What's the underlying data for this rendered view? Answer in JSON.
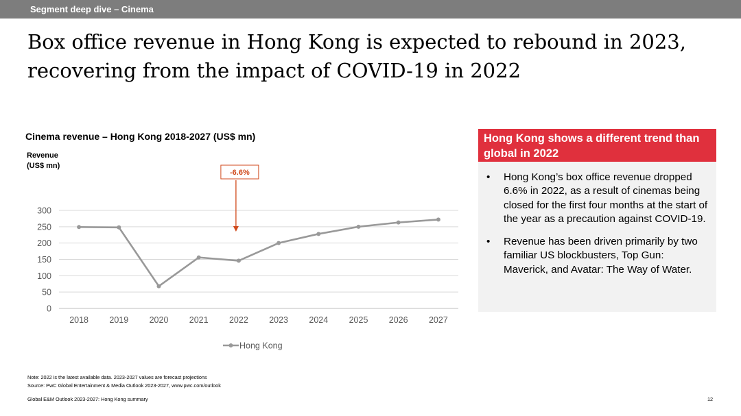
{
  "header": {
    "section": "Segment deep dive – Cinema"
  },
  "title": {
    "line1": "Box office revenue in Hong Kong is expected to rebound in 2023,",
    "line2": "recovering from the impact of COVID-19 in 2022"
  },
  "chart_data": {
    "type": "line",
    "title": "Cinema revenue – Hong Kong 2018-2027 (US$ mn)",
    "ylabel": "Revenue\n(US$ mn)",
    "xlabel": "",
    "categories": [
      "2018",
      "2019",
      "2020",
      "2021",
      "2022",
      "2023",
      "2024",
      "2025",
      "2026",
      "2027"
    ],
    "series": [
      {
        "name": "Hong Kong",
        "values": [
          249,
          248,
          68,
          156,
          146,
          200,
          228,
          250,
          263,
          272
        ],
        "color": "#999999"
      }
    ],
    "ylim": [
      0,
      300
    ],
    "yticks": [
      0,
      50,
      100,
      150,
      200,
      250,
      300
    ],
    "grid": true,
    "legend": "bottom",
    "annotation": {
      "text": "-6.6%",
      "category": "2022",
      "color": "#d04a1c"
    }
  },
  "callout": {
    "header": "Hong Kong shows a different trend than global in 2022",
    "bullet_char": "•",
    "bullets": [
      "Hong Kong’s box office revenue dropped 6.6% in 2022, as a result of cinemas being closed for the first four months at the start of the year as a precaution against COVID-19.",
      "Revenue has been driven primarily by two familiar US blockbusters, Top Gun: Maverick, and Avatar: The Way of Water."
    ]
  },
  "footer": {
    "note": "Note: 2022 is the latest available data. 2023-2027 values are forecast projections",
    "source": "Source: PwC Global Entertainment & Media Outlook 2023-2027, www.pwc.com/outlook",
    "publication": "Global E&M Outlook 2023-2027: Hong Kong summary",
    "page_number": "12"
  },
  "colors": {
    "accent": "#e0303d",
    "header_bar": "#7d7d7d",
    "callout_bg": "#f2f2f2",
    "line": "#999999",
    "annotation": "#d04a1c"
  }
}
